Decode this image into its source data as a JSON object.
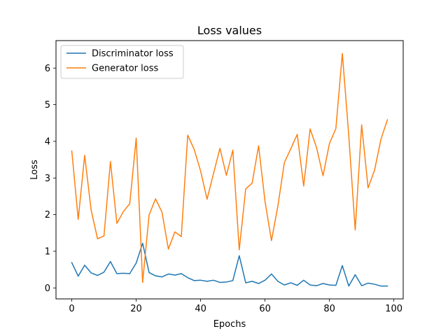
{
  "chart_data": {
    "type": "line",
    "title": "Loss values",
    "xlabel": "Epochs",
    "ylabel": "Loss",
    "xlim": [
      -4.9,
      102.9
    ],
    "ylim": [
      -0.3,
      6.75
    ],
    "xticks": [
      0,
      20,
      40,
      60,
      80,
      100
    ],
    "yticks": [
      0,
      1,
      2,
      3,
      4,
      5,
      6
    ],
    "grid": false,
    "legend_position": "top-left",
    "x": [
      0,
      2,
      4,
      6,
      8,
      10,
      12,
      14,
      16,
      18,
      20,
      22,
      24,
      26,
      28,
      30,
      32,
      34,
      36,
      38,
      40,
      42,
      44,
      46,
      48,
      50,
      52,
      54,
      56,
      58,
      60,
      62,
      64,
      66,
      68,
      70,
      72,
      74,
      76,
      78,
      80,
      82,
      84,
      86,
      88,
      90,
      92,
      94,
      96,
      98
    ],
    "series": [
      {
        "name": "Discriminator loss",
        "color": "#1f77b4",
        "values": [
          0.69,
          0.32,
          0.62,
          0.41,
          0.34,
          0.43,
          0.72,
          0.39,
          0.4,
          0.39,
          0.68,
          1.22,
          0.42,
          0.33,
          0.3,
          0.38,
          0.35,
          0.39,
          0.28,
          0.2,
          0.21,
          0.18,
          0.21,
          0.15,
          0.16,
          0.2,
          0.88,
          0.14,
          0.18,
          0.12,
          0.21,
          0.38,
          0.18,
          0.08,
          0.14,
          0.07,
          0.21,
          0.08,
          0.06,
          0.12,
          0.08,
          0.07,
          0.61,
          0.05,
          0.36,
          0.06,
          0.13,
          0.1,
          0.05,
          0.05
        ]
      },
      {
        "name": "Generator loss",
        "color": "#ff7f0e",
        "values": [
          3.74,
          1.87,
          3.62,
          2.13,
          1.34,
          1.42,
          3.45,
          1.76,
          2.08,
          2.3,
          4.09,
          0.15,
          1.99,
          2.43,
          2.07,
          1.06,
          1.53,
          1.4,
          4.17,
          3.78,
          3.19,
          2.42,
          3.12,
          3.81,
          3.07,
          3.76,
          1.04,
          2.7,
          2.86,
          3.88,
          2.36,
          1.29,
          2.24,
          3.42,
          3.8,
          4.19,
          2.78,
          4.34,
          3.83,
          3.06,
          3.94,
          4.35,
          6.4,
          4.16,
          1.58,
          4.45,
          2.73,
          3.21,
          4.06,
          4.59
        ]
      }
    ]
  }
}
